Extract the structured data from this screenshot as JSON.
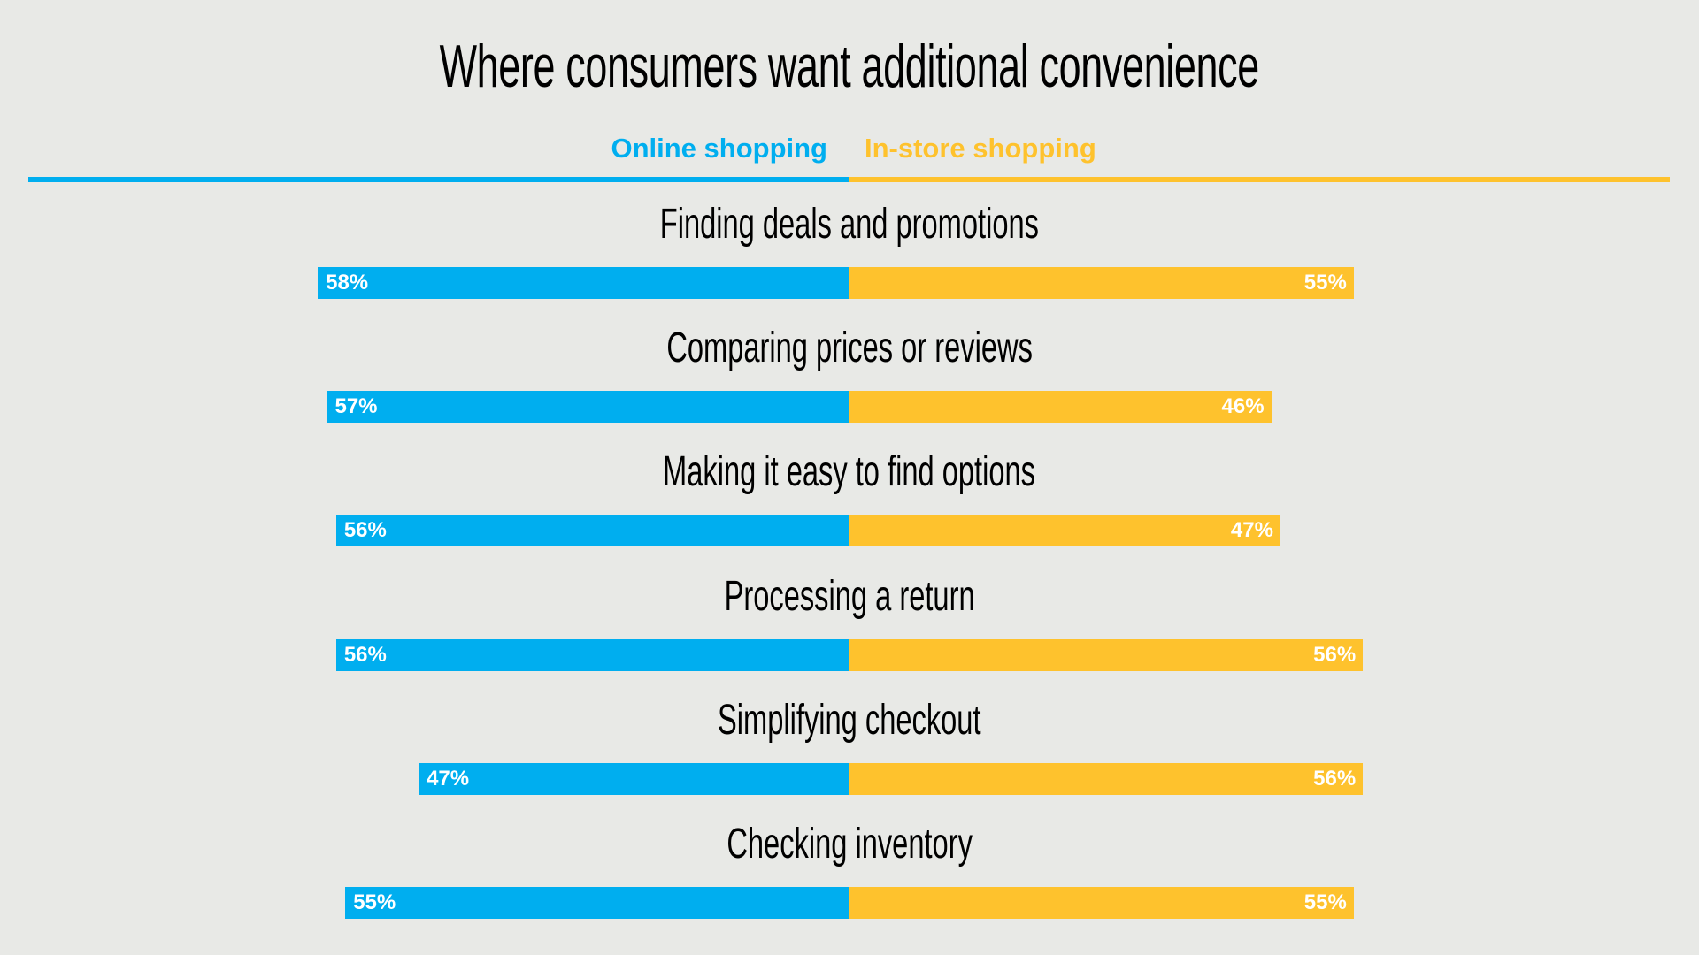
{
  "chart_data": {
    "type": "bar",
    "orientation": "diverging-horizontal",
    "title": "Where consumers want additional convenience",
    "categories": [
      "Finding deals and promotions",
      "Comparing prices or reviews",
      "Making it easy to find options",
      "Processing a return",
      "Simplifying checkout",
      "Checking inventory"
    ],
    "series": [
      {
        "name": "Online shopping",
        "color": "#00aeef",
        "values": [
          58,
          57,
          56,
          56,
          47,
          55
        ],
        "labels": [
          "58%",
          "57%",
          "56%",
          "56%",
          "47%",
          "55%"
        ]
      },
      {
        "name": "In-store shopping",
        "color": "#fec22d",
        "values": [
          55,
          46,
          47,
          56,
          56,
          55
        ],
        "labels": [
          "55%",
          "46%",
          "47%",
          "56%",
          "56%",
          "55%"
        ]
      }
    ],
    "unit": "%",
    "legend_position": "top-center",
    "grid": false
  }
}
